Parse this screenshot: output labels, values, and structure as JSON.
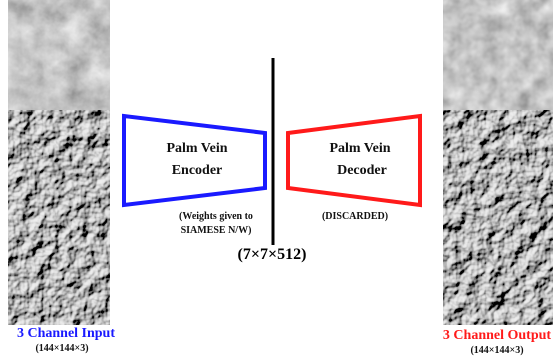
{
  "input": {
    "label": "3 Channel Input",
    "size": "(144×144×3)"
  },
  "encoder": {
    "lines": [
      "Palm Vein",
      "Encoder"
    ],
    "note": [
      "(Weights given to",
      "SIAMESE N/W)"
    ]
  },
  "latent": "(7×7×512)",
  "decoder": {
    "lines": [
      "Palm Vein",
      "Decoder"
    ],
    "note": [
      "(DISCARDED)"
    ]
  },
  "output": {
    "label": "3 Channel Output",
    "size": "(144×144×3)"
  }
}
